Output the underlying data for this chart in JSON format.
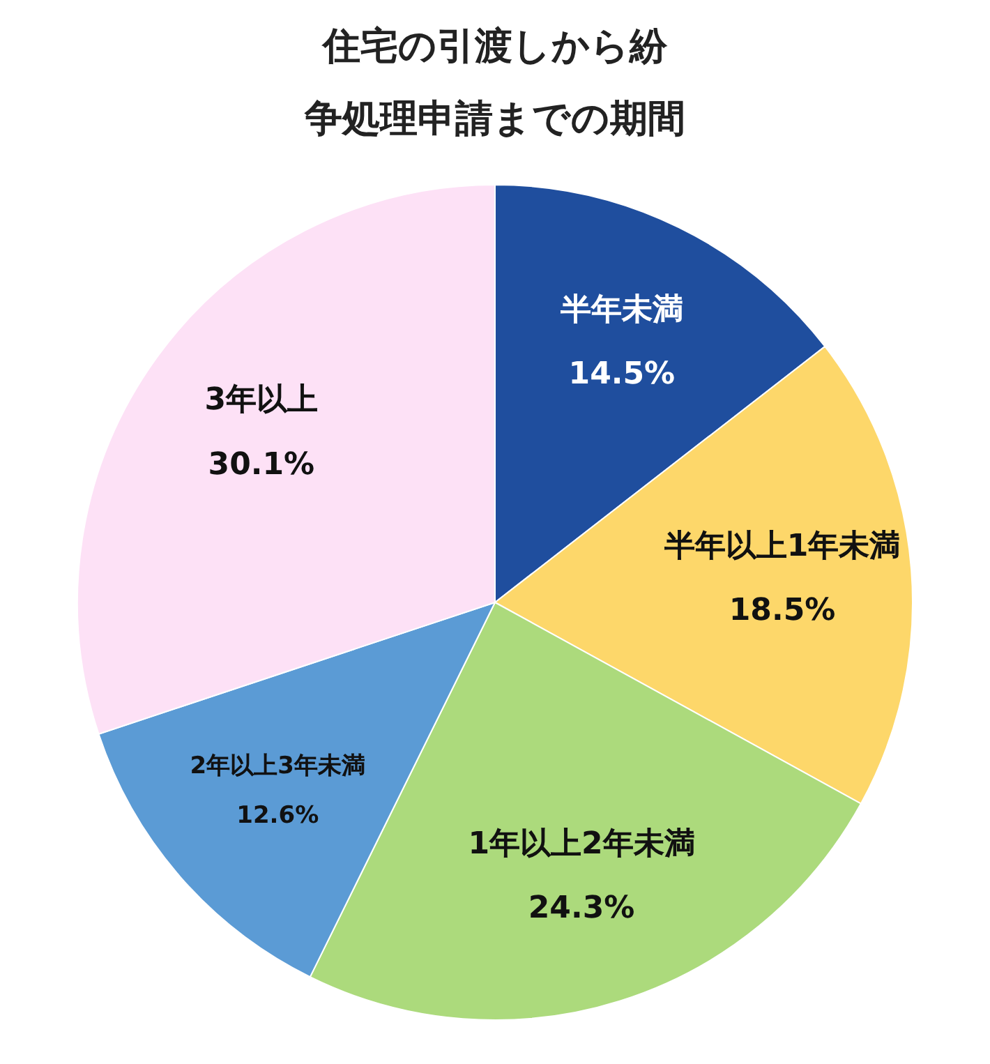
{
  "chart_data": {
    "type": "pie",
    "title": "住宅の引渡しから紛争処理申請までの期間",
    "categories": [
      "半年未満",
      "半年以上1年未満",
      "1年以上2年未満",
      "2年以上3年未満",
      "3年以上"
    ],
    "values": [
      14.5,
      18.5,
      24.3,
      12.6,
      30.1
    ],
    "colors": [
      "#1f4e9e",
      "#fdd76a",
      "#acda7c",
      "#5b9bd5",
      "#fde1f6"
    ],
    "value_labels": [
      "14.5%",
      "18.5%",
      "24.3%",
      "12.6%",
      "30.1%"
    ],
    "legend": false
  }
}
